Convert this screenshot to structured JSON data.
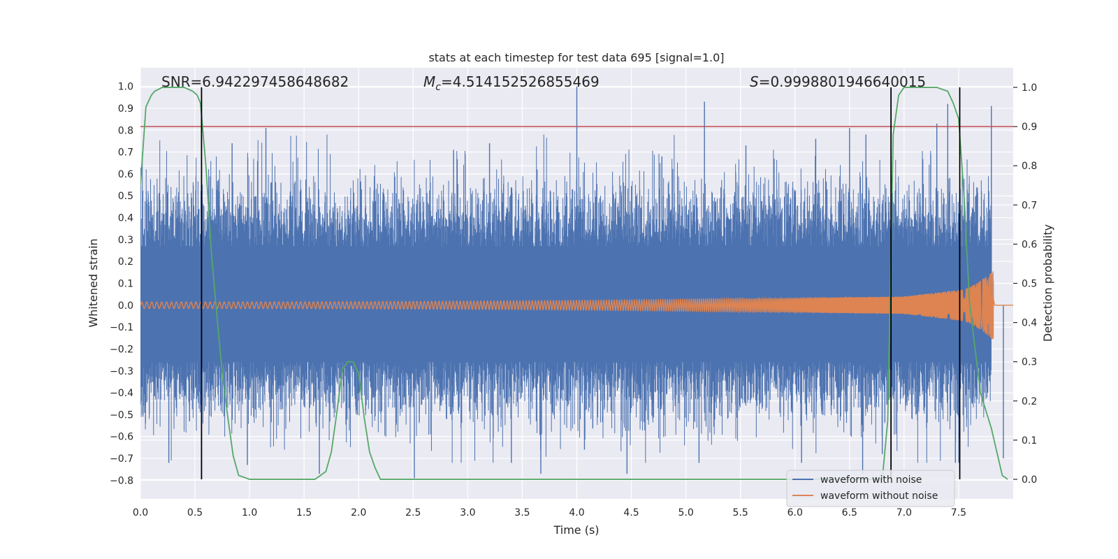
{
  "chart_data": {
    "type": "line",
    "title": "stats at each timestep for test data 695 [signal=1.0]",
    "xlabel": "Time (s)",
    "ylabel_left": "Whitened strain",
    "ylabel_right": "Detection probability",
    "xlim": [
      0.0,
      8.0
    ],
    "ylim_left": [
      -0.885,
      1.085
    ],
    "ylim_right": [
      -0.05,
      1.05
    ],
    "x_ticks": [
      "0.0",
      "0.5",
      "1.0",
      "1.5",
      "2.0",
      "2.5",
      "3.0",
      "3.5",
      "4.0",
      "4.5",
      "5.0",
      "5.5",
      "6.0",
      "6.5",
      "7.0",
      "7.5"
    ],
    "y_ticks_left": [
      "−0.8",
      "−0.7",
      "−0.6",
      "−0.5",
      "−0.4",
      "−0.3",
      "−0.2",
      "−0.1",
      "0.0",
      "0.1",
      "0.2",
      "0.3",
      "0.4",
      "0.5",
      "0.6",
      "0.7",
      "0.8",
      "0.9",
      "1.0"
    ],
    "y_ticks_right": [
      "0.0",
      "0.1",
      "0.2",
      "0.3",
      "0.4",
      "0.5",
      "0.6",
      "0.7",
      "0.8",
      "0.9",
      "1.0"
    ],
    "grid": true,
    "legend_position": "lower-right",
    "annotations": {
      "snr_text": "SNR=6.942297458648682",
      "mc_symbol": "M",
      "mc_subscript": "c",
      "mc_value": "=4.514152526855469",
      "s_symbol": "S",
      "s_value": "=0.9998801946640015"
    },
    "series": [
      {
        "name": "waveform with noise",
        "color": "#4c72b0",
        "axis": "left",
        "description_envelope": {
          "x": [
            0.0,
            1.0,
            2.0,
            3.0,
            4.0,
            5.0,
            6.0,
            7.0,
            7.8
          ],
          "typical_upper": [
            0.45,
            0.45,
            0.45,
            0.45,
            0.45,
            0.45,
            0.45,
            0.45,
            0.45
          ],
          "typical_lower": [
            -0.42,
            -0.42,
            -0.42,
            -0.42,
            -0.42,
            -0.42,
            -0.42,
            -0.42,
            -0.42
          ]
        },
        "peaks": [
          [
            4.0,
            1.0
          ],
          [
            5.17,
            0.93
          ],
          [
            7.4,
            0.92
          ],
          [
            7.8,
            0.91
          ],
          [
            1.15,
            0.81
          ],
          [
            7.3,
            0.83
          ],
          [
            6.5,
            0.81
          ],
          [
            0.84,
            0.74
          ],
          [
            2.87,
            0.71
          ],
          [
            3.2,
            0.74
          ],
          [
            4.07,
            -0.66
          ],
          [
            4.78,
            0.68
          ],
          [
            5.55,
            0.73
          ],
          [
            6.19,
            0.76
          ],
          [
            6.65,
            0.78
          ],
          [
            0.26,
            -0.72
          ],
          [
            0.45,
            -0.53
          ],
          [
            0.98,
            -0.73
          ],
          [
            1.64,
            -0.77
          ],
          [
            2.51,
            -0.79
          ],
          [
            3.4,
            -0.72
          ],
          [
            3.67,
            -0.77
          ],
          [
            4.46,
            -0.77
          ],
          [
            5.12,
            -0.72
          ],
          [
            6.06,
            -0.72
          ],
          [
            6.62,
            -0.77
          ],
          [
            6.8,
            -0.68
          ],
          [
            7.47,
            -0.72
          ],
          [
            7.91,
            -0.7
          ]
        ]
      },
      {
        "name": "waveform without noise",
        "color": "#dd8452",
        "axis": "left",
        "chirp": {
          "start_time": 0.0,
          "end_time": 7.82,
          "start_amplitude": 0.015,
          "amplitude_at_7_0": 0.04,
          "amplitude_at_7_5": 0.07,
          "peak_amplitude": 0.16,
          "start_frequency_hz": 20
        }
      },
      {
        "name": "",
        "color": "#55a868",
        "axis": "right",
        "x": [
          0.0,
          0.05,
          0.1,
          0.13,
          0.2,
          0.3,
          0.4,
          0.48,
          0.52,
          0.55,
          0.6,
          0.65,
          0.7,
          0.75,
          0.8,
          0.85,
          0.9,
          1.0,
          1.2,
          1.4,
          1.55,
          1.6,
          1.65,
          1.7,
          1.75,
          1.8,
          1.85,
          1.9,
          1.95,
          2.0,
          2.05,
          2.1,
          2.15,
          2.2,
          2.4,
          3.0,
          4.0,
          5.0,
          6.0,
          6.5,
          6.8,
          6.85,
          6.9,
          6.95,
          7.0,
          7.1,
          7.2,
          7.3,
          7.4,
          7.45,
          7.5,
          7.55,
          7.6,
          7.7,
          7.8,
          7.9,
          7.95
        ],
        "values": [
          0.75,
          0.95,
          0.98,
          0.99,
          1.0,
          1.0,
          1.0,
          0.99,
          0.98,
          0.96,
          0.8,
          0.58,
          0.42,
          0.27,
          0.16,
          0.06,
          0.01,
          0.0,
          0.0,
          0.0,
          0.0,
          0.0,
          0.01,
          0.02,
          0.07,
          0.17,
          0.28,
          0.3,
          0.3,
          0.27,
          0.16,
          0.07,
          0.03,
          0.0,
          0.0,
          0.0,
          0.0,
          0.0,
          0.0,
          0.0,
          0.0,
          0.15,
          0.88,
          0.98,
          1.0,
          1.0,
          1.0,
          1.0,
          0.99,
          0.96,
          0.92,
          0.72,
          0.45,
          0.22,
          0.13,
          0.01,
          0.0
        ]
      },
      {
        "name": "",
        "color": "#c44e52",
        "axis": "right",
        "type": "hline",
        "value": 0.9
      }
    ],
    "vertical_lines": [
      0.56,
      6.88,
      7.51
    ]
  }
}
